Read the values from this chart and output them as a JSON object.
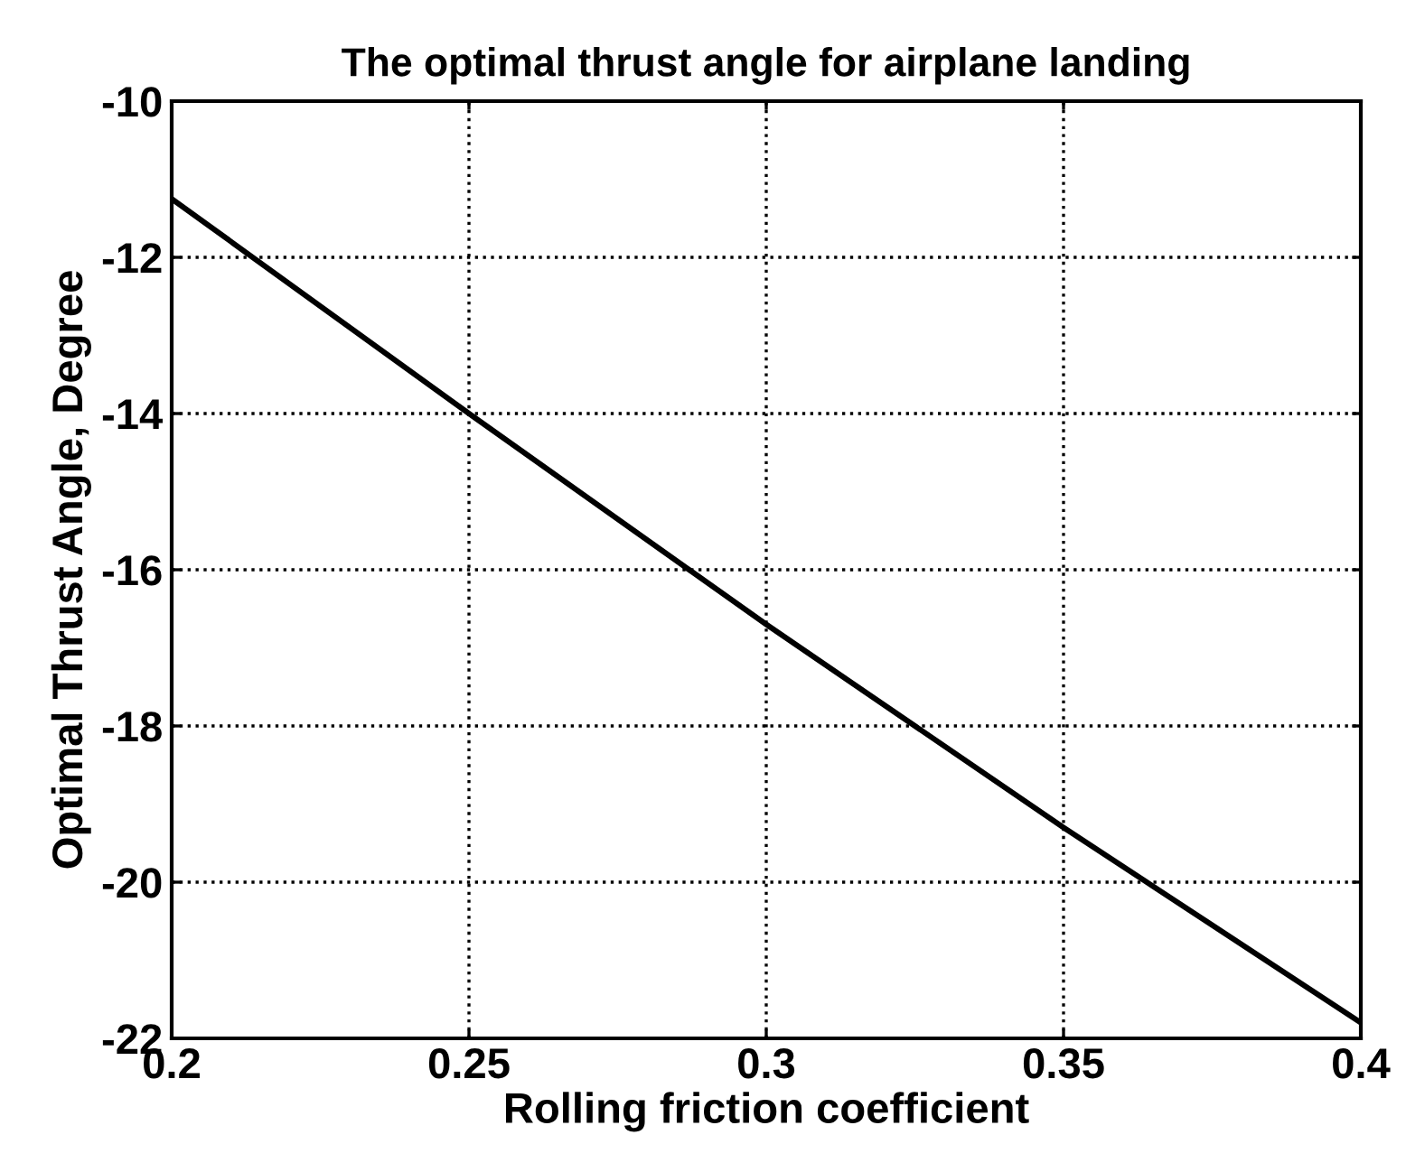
{
  "chart_data": {
    "type": "line",
    "title": "The optimal thrust angle for airplane landing",
    "xlabel": "Rolling friction coefficient",
    "ylabel": "Optimal Thrust Angle, Degree",
    "x": [
      0.2,
      0.25,
      0.3,
      0.35,
      0.4
    ],
    "series": [
      {
        "color": "#000000",
        "values": [
          -11.25,
          -14.0,
          -16.7,
          -19.3,
          -21.8
        ]
      }
    ],
    "xlim": [
      0.2,
      0.4
    ],
    "xticks": [
      0.2,
      0.25,
      0.3,
      0.35,
      0.4
    ],
    "ylim": [
      -22,
      -10
    ],
    "yticks": [
      -22,
      -20,
      -18,
      -16,
      -14,
      -12,
      -10
    ],
    "grid": true,
    "line_style": "solid",
    "marker": "none"
  }
}
